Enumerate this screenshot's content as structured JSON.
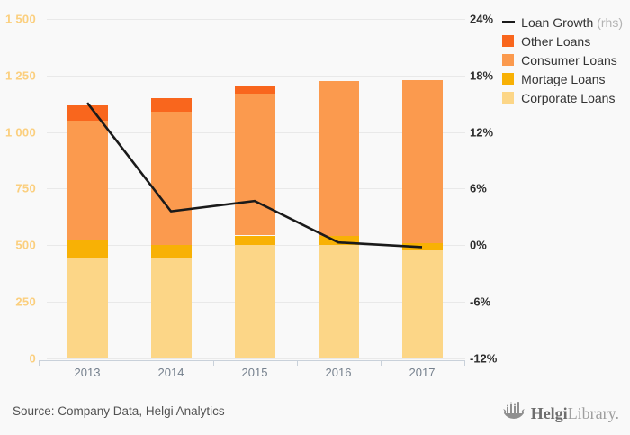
{
  "chart_data": {
    "type": "bar",
    "subtype": "stacked-bars-with-line-overlay",
    "categories": [
      "2013",
      "2014",
      "2015",
      "2016",
      "2017"
    ],
    "series": [
      {
        "name": "Corporate Loans",
        "color": "#fcd687",
        "values": [
          445,
          447,
          500,
          500,
          478
        ]
      },
      {
        "name": "Mortage Loans",
        "color": "#f8b105",
        "values": [
          82,
          56,
          43,
          41,
          32
        ]
      },
      {
        "name": "Consumer Loans",
        "color": "#fb9a4e",
        "values": [
          525,
          587,
          627,
          686,
          720
        ]
      },
      {
        "name": "Other Loans",
        "color": "#f9661d",
        "values": [
          66,
          60,
          30,
          0,
          0
        ]
      }
    ],
    "line_series": {
      "name": "Loan Growth (rhs)",
      "color": "#1a1a1a",
      "axis": "right",
      "values": [
        15.1,
        3.6,
        4.7,
        0.3,
        -0.2
      ]
    },
    "left_axis": {
      "min": 0,
      "max": 1500,
      "ticks": [
        "1 500",
        "1 250",
        "1 000",
        "750",
        "500",
        "250",
        "0"
      ]
    },
    "right_axis": {
      "min": -12,
      "max": 24,
      "ticks": [
        "24%",
        "18%",
        "12%",
        "6%",
        "0%",
        "-6%",
        "-12%"
      ]
    },
    "grid": true,
    "legend_position": "top-right",
    "legend": [
      {
        "label": "Loan Growth",
        "suffix": " (rhs)",
        "marker": "line",
        "color": "#1a1a1a"
      },
      {
        "label": "Other Loans",
        "suffix": "",
        "marker": "square",
        "color": "#f9661d"
      },
      {
        "label": "Consumer Loans",
        "suffix": "",
        "marker": "square",
        "color": "#fb9a4e"
      },
      {
        "label": "Mortage Loans",
        "suffix": "",
        "marker": "square",
        "color": "#f8b105"
      },
      {
        "label": "Corporate Loans",
        "suffix": "",
        "marker": "square",
        "color": "#fcd687"
      }
    ],
    "title": "",
    "xlabel": "",
    "ylabel": ""
  },
  "footer": {
    "source": "Source: Company Data, Helgi Analytics",
    "logo_bold": "Helgi",
    "logo_light": "Library."
  }
}
